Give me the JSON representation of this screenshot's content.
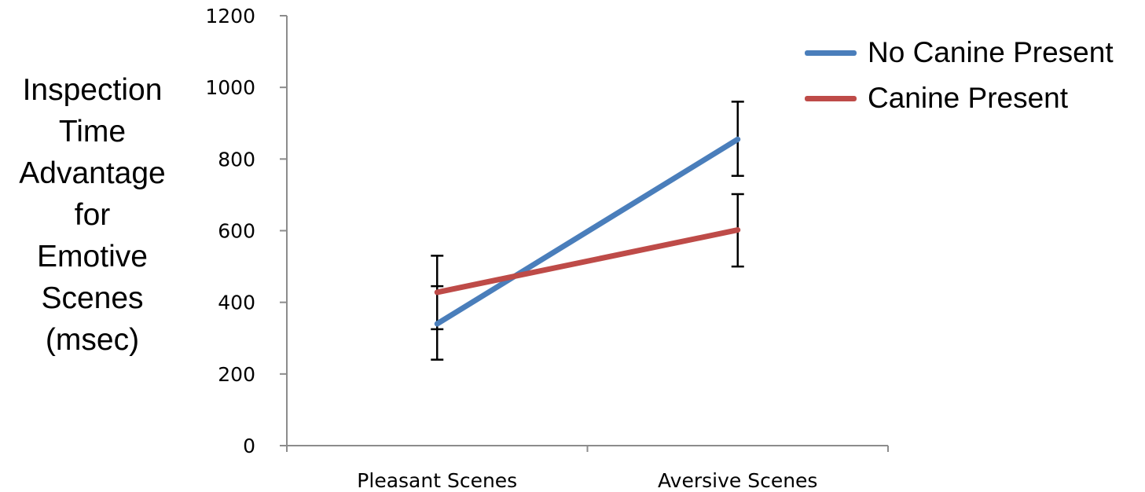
{
  "chart_data": {
    "type": "line",
    "ylabel_lines": [
      "Inspection",
      "Time",
      "Advantage",
      "for",
      "Emotive",
      "Scenes",
      "(msec)"
    ],
    "categories": [
      "Pleasant Scenes",
      "Aversive Scenes"
    ],
    "ylim": [
      0,
      1200
    ],
    "yticks": [
      "0",
      "200",
      "400",
      "600",
      "800",
      "1000",
      "1200"
    ],
    "grid": false,
    "legend_position": "top-right",
    "series": [
      {
        "name": "No Canine Present",
        "color": "#4a7ebb",
        "values": [
          340,
          855
        ],
        "error": [
          [
            240,
            445
          ],
          [
            753,
            960
          ]
        ]
      },
      {
        "name": "Canine Present",
        "color": "#be4b48",
        "values": [
          428,
          602
        ],
        "error": [
          [
            325,
            530
          ],
          [
            500,
            702
          ]
        ]
      }
    ]
  }
}
